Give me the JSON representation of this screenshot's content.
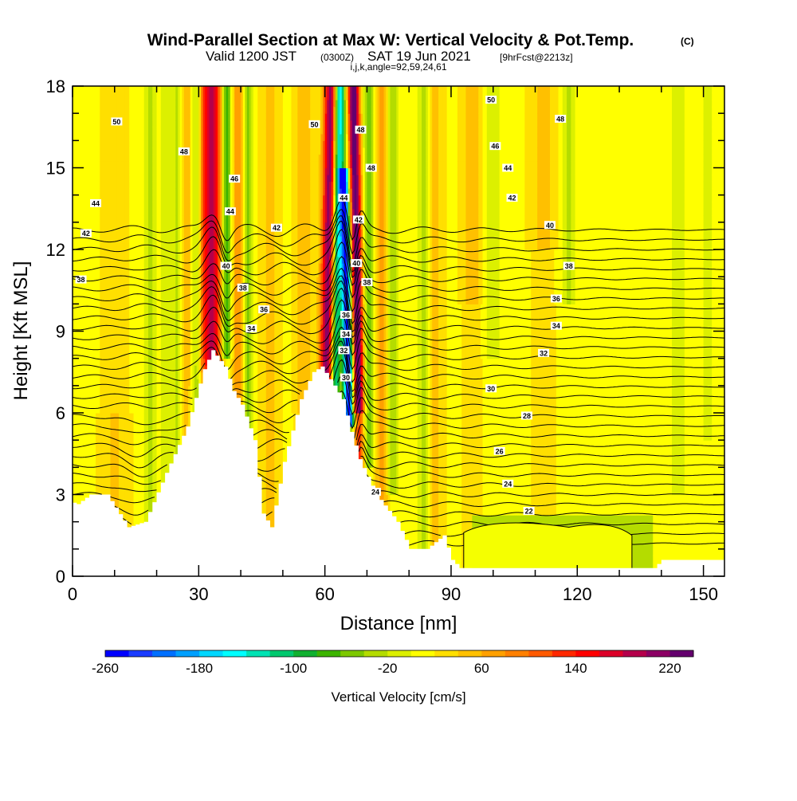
{
  "chart_data": {
    "type": "heatmap",
    "title": "Wind-Parallel Section at Max W: Vertical Velocity & Pot.Temp.",
    "title_tag": "(C)",
    "subtitle_main": "Valid 1200 JST",
    "subtitle_utc": "(0300Z)",
    "subtitle_date": "SAT 19 Jun 2021",
    "subtitle_fcst": "[9hrFcst@2213z]",
    "subtitle_ijk": "i,j,k,angle=92,59,24,61",
    "xlabel": "Distance [nm]",
    "ylabel": "Height [Kft MSL]",
    "xlim": [
      0,
      155
    ],
    "ylim": [
      0,
      18
    ],
    "x_ticks": [
      0,
      30,
      60,
      90,
      120,
      150
    ],
    "x_tick_labels": [
      "0",
      "30",
      "60",
      "90",
      "120",
      "150"
    ],
    "y_ticks": [
      0,
      3,
      6,
      9,
      12,
      15,
      18
    ],
    "y_tick_labels": [
      "0",
      "3",
      "6",
      "9",
      "12",
      "15",
      "18"
    ],
    "colorbar": {
      "label": "Vertical Velocity [cm/s]",
      "min": -260,
      "max": 240,
      "step": 20,
      "tick_values": [
        -260,
        -180,
        -100,
        -20,
        60,
        140,
        220
      ],
      "tick_labels": [
        "-260",
        "-180",
        "-100",
        "-20",
        "60",
        "140",
        "220"
      ],
      "colors": [
        "#0000ff",
        "#1a3cff",
        "#0070ff",
        "#00a0ff",
        "#00d7ff",
        "#00ffff",
        "#00e3b4",
        "#00c86e",
        "#10b030",
        "#3cb400",
        "#7dc800",
        "#b4dc00",
        "#dcf000",
        "#ffff00",
        "#ffdf00",
        "#ffc000",
        "#ffa000",
        "#ff8000",
        "#ff5a00",
        "#ff2800",
        "#ff0000",
        "#dc0028",
        "#b4004b",
        "#8c0064",
        "#64006e"
      ]
    },
    "contour_labels": [
      {
        "text": "50",
        "x": 10.5,
        "y": 16.7
      },
      {
        "text": "48",
        "x": 26.5,
        "y": 15.6
      },
      {
        "text": "46",
        "x": 38.5,
        "y": 14.6
      },
      {
        "text": "44",
        "x": 5.5,
        "y": 13.7
      },
      {
        "text": "44",
        "x": 37.5,
        "y": 13.4
      },
      {
        "text": "42",
        "x": 3.2,
        "y": 12.6
      },
      {
        "text": "42",
        "x": 48.5,
        "y": 12.8
      },
      {
        "text": "40",
        "x": 36.5,
        "y": 11.4
      },
      {
        "text": "38",
        "x": 2.0,
        "y": 10.9
      },
      {
        "text": "38",
        "x": 40.5,
        "y": 10.6
      },
      {
        "text": "36",
        "x": 45.5,
        "y": 9.8
      },
      {
        "text": "34",
        "x": 42.5,
        "y": 9.1
      },
      {
        "text": "50",
        "x": 57.5,
        "y": 16.6
      },
      {
        "text": "48",
        "x": 68.5,
        "y": 16.4
      },
      {
        "text": "48",
        "x": 71.0,
        "y": 15.0
      },
      {
        "text": "44",
        "x": 64.5,
        "y": 13.9
      },
      {
        "text": "42",
        "x": 68.0,
        "y": 13.1
      },
      {
        "text": "40",
        "x": 67.5,
        "y": 11.5
      },
      {
        "text": "38",
        "x": 70.0,
        "y": 10.8
      },
      {
        "text": "36",
        "x": 65.0,
        "y": 9.6
      },
      {
        "text": "34",
        "x": 65.0,
        "y": 8.9
      },
      {
        "text": "32",
        "x": 64.5,
        "y": 8.3
      },
      {
        "text": "30",
        "x": 65.0,
        "y": 7.3
      },
      {
        "text": "50",
        "x": 99.5,
        "y": 17.5
      },
      {
        "text": "48",
        "x": 116.0,
        "y": 16.8
      },
      {
        "text": "46",
        "x": 100.5,
        "y": 15.8
      },
      {
        "text": "44",
        "x": 103.5,
        "y": 15.0
      },
      {
        "text": "42",
        "x": 104.5,
        "y": 13.9
      },
      {
        "text": "40",
        "x": 113.5,
        "y": 12.9
      },
      {
        "text": "38",
        "x": 118.0,
        "y": 11.4
      },
      {
        "text": "36",
        "x": 115.0,
        "y": 10.2
      },
      {
        "text": "34",
        "x": 115.0,
        "y": 9.2
      },
      {
        "text": "32",
        "x": 112.0,
        "y": 8.2
      },
      {
        "text": "30",
        "x": 99.5,
        "y": 6.9
      },
      {
        "text": "28",
        "x": 108.0,
        "y": 5.9
      },
      {
        "text": "26",
        "x": 101.5,
        "y": 4.6
      },
      {
        "text": "24",
        "x": 103.5,
        "y": 3.4
      },
      {
        "text": "24",
        "x": 72.0,
        "y": 3.1
      },
      {
        "text": "22",
        "x": 108.5,
        "y": 2.4
      }
    ]
  }
}
